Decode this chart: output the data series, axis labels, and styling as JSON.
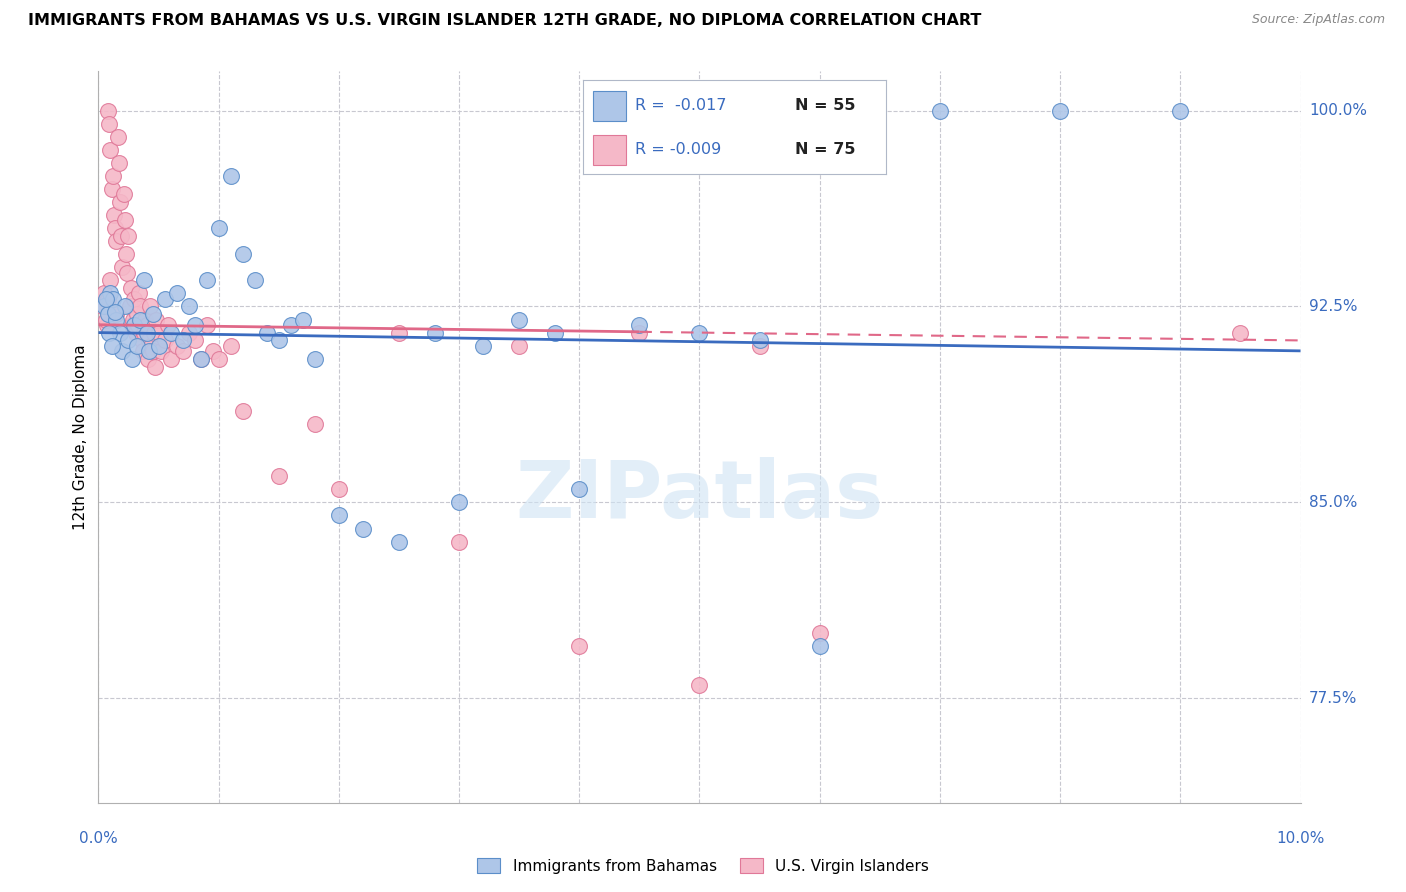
{
  "title": "IMMIGRANTS FROM BAHAMAS VS U.S. VIRGIN ISLANDER 12TH GRADE, NO DIPLOMA CORRELATION CHART",
  "source": "Source: ZipAtlas.com",
  "ylabel": "12th Grade, No Diploma",
  "xlim": [
    0.0,
    10.0
  ],
  "ylim": [
    73.5,
    101.5
  ],
  "blue_color": "#aec6e8",
  "blue_edge_color": "#5b8ec9",
  "pink_color": "#f5b8c8",
  "pink_edge_color": "#e07898",
  "blue_line_color": "#3a6bbf",
  "pink_line_color": "#e06888",
  "legend_R_blue": "R =  -0.017",
  "legend_N_blue": "N = 55",
  "legend_R_pink": "R = -0.009",
  "legend_N_pink": "N = 75",
  "watermark": "ZIPatlas",
  "blue_trend_x0": 0.0,
  "blue_trend_y0": 91.5,
  "blue_trend_x1": 10.0,
  "blue_trend_y1": 90.8,
  "pink_trend_x0": 0.0,
  "pink_trend_y0": 91.8,
  "pink_trend_x1": 10.0,
  "pink_trend_y1": 91.2,
  "blue_scatter_x": [
    0.05,
    0.08,
    0.1,
    0.12,
    0.15,
    0.18,
    0.2,
    0.22,
    0.25,
    0.28,
    0.3,
    0.32,
    0.35,
    0.38,
    0.4,
    0.42,
    0.45,
    0.5,
    0.55,
    0.6,
    0.65,
    0.7,
    0.75,
    0.8,
    0.85,
    0.9,
    1.0,
    1.1,
    1.2,
    1.3,
    1.4,
    1.5,
    1.6,
    1.7,
    1.8,
    2.0,
    2.2,
    2.5,
    2.8,
    3.0,
    3.2,
    3.5,
    3.8,
    4.0,
    4.5,
    5.0,
    5.5,
    6.0,
    7.0,
    8.0,
    9.0,
    0.06,
    0.09,
    0.11,
    0.14
  ],
  "blue_scatter_y": [
    92.5,
    92.2,
    93.0,
    92.8,
    92.0,
    91.5,
    90.8,
    92.5,
    91.2,
    90.5,
    91.8,
    91.0,
    92.0,
    93.5,
    91.5,
    90.8,
    92.2,
    91.0,
    92.8,
    91.5,
    93.0,
    91.2,
    92.5,
    91.8,
    90.5,
    93.5,
    95.5,
    97.5,
    94.5,
    93.5,
    91.5,
    91.2,
    91.8,
    92.0,
    90.5,
    84.5,
    84.0,
    83.5,
    91.5,
    85.0,
    91.0,
    92.0,
    91.5,
    85.5,
    91.8,
    91.5,
    91.2,
    79.5,
    100.0,
    100.0,
    100.0,
    92.8,
    91.5,
    91.0,
    92.3
  ],
  "pink_scatter_x": [
    0.03,
    0.05,
    0.07,
    0.08,
    0.09,
    0.1,
    0.11,
    0.12,
    0.13,
    0.14,
    0.15,
    0.16,
    0.17,
    0.18,
    0.19,
    0.2,
    0.21,
    0.22,
    0.23,
    0.24,
    0.25,
    0.26,
    0.27,
    0.28,
    0.29,
    0.3,
    0.31,
    0.32,
    0.33,
    0.34,
    0.35,
    0.36,
    0.37,
    0.38,
    0.39,
    0.4,
    0.41,
    0.42,
    0.43,
    0.44,
    0.45,
    0.46,
    0.47,
    0.48,
    0.5,
    0.52,
    0.55,
    0.58,
    0.6,
    0.65,
    0.7,
    0.75,
    0.8,
    0.85,
    0.9,
    0.95,
    1.0,
    1.1,
    1.2,
    1.5,
    1.8,
    2.0,
    2.5,
    3.0,
    3.5,
    4.0,
    4.5,
    5.0,
    5.5,
    6.0,
    0.06,
    0.08,
    0.1,
    0.15,
    9.5
  ],
  "pink_scatter_y": [
    92.5,
    93.0,
    91.8,
    100.0,
    99.5,
    98.5,
    97.0,
    97.5,
    96.0,
    95.5,
    95.0,
    99.0,
    98.0,
    96.5,
    95.2,
    94.0,
    96.8,
    95.8,
    94.5,
    93.8,
    95.2,
    92.5,
    93.2,
    91.8,
    92.0,
    92.8,
    91.5,
    92.2,
    91.8,
    93.0,
    92.5,
    91.2,
    90.8,
    91.5,
    92.0,
    91.8,
    90.5,
    91.2,
    92.5,
    91.0,
    90.8,
    91.5,
    90.2,
    92.0,
    91.5,
    90.8,
    91.2,
    91.8,
    90.5,
    91.0,
    90.8,
    91.5,
    91.2,
    90.5,
    91.8,
    90.8,
    90.5,
    91.0,
    88.5,
    86.0,
    88.0,
    85.5,
    91.5,
    83.5,
    91.0,
    79.5,
    91.5,
    78.0,
    91.0,
    80.0,
    92.0,
    92.8,
    93.5,
    92.2,
    91.5
  ]
}
